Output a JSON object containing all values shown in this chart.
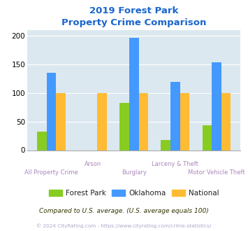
{
  "title_line1": "2019 Forest Park",
  "title_line2": "Property Crime Comparison",
  "categories": [
    "All Property Crime",
    "Arson",
    "Burglary",
    "Larceny & Theft",
    "Motor Vehicle Theft"
  ],
  "forest_park": [
    33,
    0,
    82,
    18,
    44
  ],
  "oklahoma": [
    135,
    0,
    197,
    119,
    153
  ],
  "national": [
    100,
    100,
    100,
    100,
    100
  ],
  "arson_fp_missing": true,
  "arson_ok_missing": true,
  "bar_colors": {
    "forest_park": "#88cc22",
    "oklahoma": "#4499ff",
    "national": "#ffbb33"
  },
  "ylim": [
    0,
    210
  ],
  "yticks": [
    0,
    50,
    100,
    150,
    200
  ],
  "plot_bg": "#dce8f0",
  "fig_bg": "#ffffff",
  "title_color": "#1a66cc",
  "xlabel_color": "#aa88bb",
  "legend_text_color": "#222222",
  "legend_labels": [
    "Forest Park",
    "Oklahoma",
    "National"
  ],
  "footnote1": "Compared to U.S. average. (U.S. average equals 100)",
  "footnote2": "© 2024 CityRating.com - https://www.cityrating.com/crime-statistics/",
  "footnote1_color": "#333300",
  "footnote2_color": "#aaaacc",
  "grid_color": "#ffffff",
  "figsize": [
    3.55,
    3.3
  ],
  "dpi": 100
}
